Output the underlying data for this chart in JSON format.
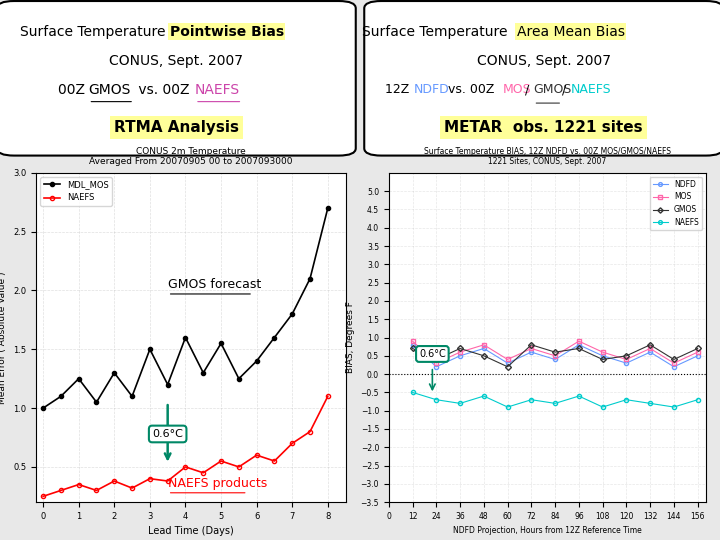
{
  "bg_color": "#e8e8e8",
  "white": "#ffffff",
  "yellow_highlight": "#ffff99",
  "black": "#000000",
  "red": "#cc0000",
  "teal": "#008866",
  "ndfd_color": "#6699ff",
  "mos_color": "#ff66aa",
  "gmos_color": "#333333",
  "naefs_color": "#00cccc",
  "naefs_pink": "#cc44aa",
  "chart1_title1": "CONUS 2m Temperature",
  "chart1_title2": "Averaged From 20070905 00 to 2007093000",
  "chart1_xlabel": "Lead Time (Days)",
  "chart1_ylabel": "Mean Error ( Absolute Value )",
  "chart1_legend1": "MDL_MOS",
  "chart1_legend2": "NAEFS",
  "chart1_gmos_label": "GMOS forecast",
  "chart1_naefs_label": "NAEFS products",
  "chart1_bias_label": "0.6°C",
  "chart2_title1": "Surface Temperature BIAS, 12Z NDFD vs. 00Z MOS/GMOS/NAEFS",
  "chart2_title2": "1221 Sites, CONUS, Sept. 2007",
  "chart2_xlabel": "NDFD Projection, Hours from 12Z Reference Time",
  "chart2_ylabel": "BIAS, Degrees F",
  "chart2_bias_label": "0.6°C",
  "mos_vals": [
    1.0,
    1.1,
    1.25,
    1.05,
    1.3,
    1.1,
    1.5,
    1.2,
    1.6,
    1.3,
    1.55,
    1.25,
    1.4,
    1.6,
    1.8,
    2.1,
    2.7
  ],
  "naefs_vals": [
    0.25,
    0.3,
    0.35,
    0.3,
    0.38,
    0.32,
    0.4,
    0.38,
    0.5,
    0.45,
    0.55,
    0.5,
    0.6,
    0.55,
    0.7,
    0.8,
    1.1
  ],
  "ndfd_vals": [
    0.8,
    0.2,
    0.5,
    0.7,
    0.3,
    0.6,
    0.4,
    0.8,
    0.5,
    0.3,
    0.6,
    0.2,
    0.5
  ],
  "mos2_vals": [
    0.9,
    0.3,
    0.6,
    0.8,
    0.4,
    0.7,
    0.5,
    0.9,
    0.6,
    0.4,
    0.7,
    0.3,
    0.6
  ],
  "gmos2_vals": [
    0.7,
    0.4,
    0.7,
    0.5,
    0.2,
    0.8,
    0.6,
    0.7,
    0.4,
    0.5,
    0.8,
    0.4,
    0.7
  ],
  "naefs2_vals": [
    -0.5,
    -0.7,
    -0.8,
    -0.6,
    -0.9,
    -0.7,
    -0.8,
    -0.6,
    -0.9,
    -0.7,
    -0.8,
    -0.9,
    -0.7
  ]
}
